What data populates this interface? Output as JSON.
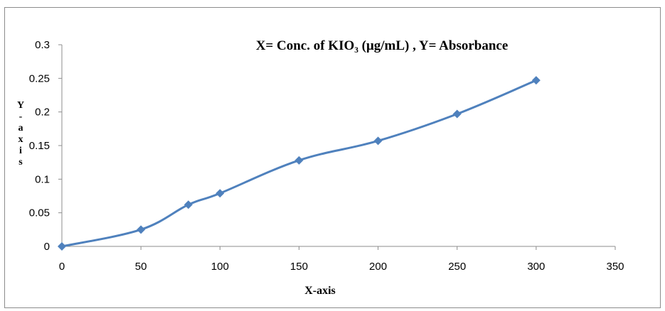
{
  "chart_data": {
    "type": "line",
    "title": "X= Conc. of KIO₃ (μg/mL)  , Y= Absorbance",
    "xlabel": "X-axis",
    "ylabel": "Y-axis",
    "xlim": [
      0,
      350
    ],
    "ylim": [
      0,
      0.3
    ],
    "x_ticks": [
      "0",
      "50",
      "100",
      "150",
      "200",
      "250",
      "300",
      "350"
    ],
    "y_ticks": [
      "0",
      "0.05",
      "0.1",
      "0.15",
      "0.2",
      "0.25",
      "0.3"
    ],
    "grid": false,
    "legend": "none",
    "line_color": "#4f81bd",
    "series": [
      {
        "x": [
          0,
          50,
          80,
          100,
          150,
          200,
          250,
          300
        ],
        "y": [
          0,
          0.025,
          0.062,
          0.079,
          0.128,
          0.157,
          0.197,
          0.247
        ]
      }
    ]
  }
}
